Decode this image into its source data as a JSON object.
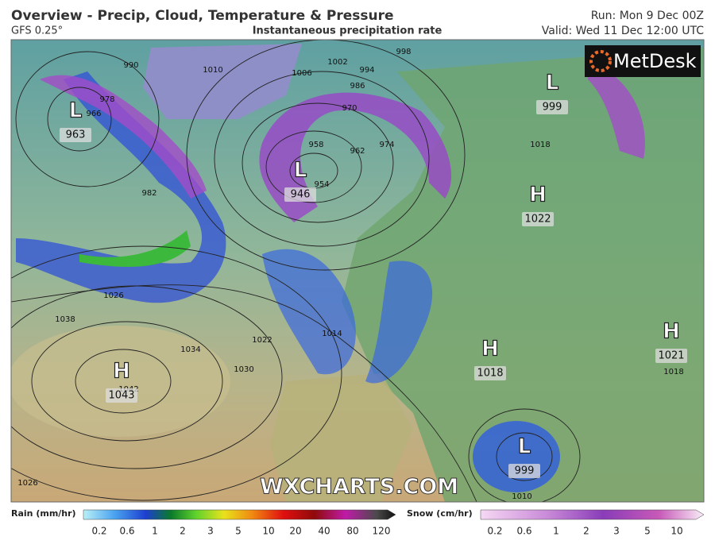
{
  "header": {
    "title": "Overview - Precip, Cloud, Temperature & Pressure",
    "model": "GFS 0.25°",
    "subtitle": "Instantaneous precipitation rate",
    "run": "Run: Mon 9 Dec 00Z",
    "valid": "Valid: Wed 11 Dec 12:00 UTC"
  },
  "map": {
    "logo": "MetDesk",
    "watermark": "WXCHARTS.COM",
    "centers": [
      {
        "letter": "L",
        "pressure": 963
      },
      {
        "letter": "L",
        "pressure": 946
      },
      {
        "letter": "L",
        "pressure": 999
      },
      {
        "letter": "H",
        "pressure": 1022
      },
      {
        "letter": "H",
        "pressure": 1043
      },
      {
        "letter": "H",
        "pressure": 1018
      },
      {
        "letter": "H",
        "pressure": 1021
      },
      {
        "letter": "L",
        "pressure": 999
      }
    ],
    "isobar_labels": [
      990,
      1002,
      994,
      998,
      986,
      982,
      978,
      970,
      966,
      962,
      958,
      954,
      974,
      1010,
      1014,
      1018,
      1022,
      1026,
      1030,
      1034,
      1038,
      1042,
      1006,
      1026,
      1018,
      1010
    ]
  },
  "legend": {
    "rain_label": "Rain (mm/hr)",
    "rain_ticks": [
      0.2,
      0.6,
      1,
      2,
      3,
      5,
      10,
      20,
      40,
      80,
      120
    ],
    "snow_label": "Snow (cm/hr)",
    "snow_ticks": [
      0.2,
      0.6,
      1,
      2,
      3,
      5,
      10
    ]
  }
}
